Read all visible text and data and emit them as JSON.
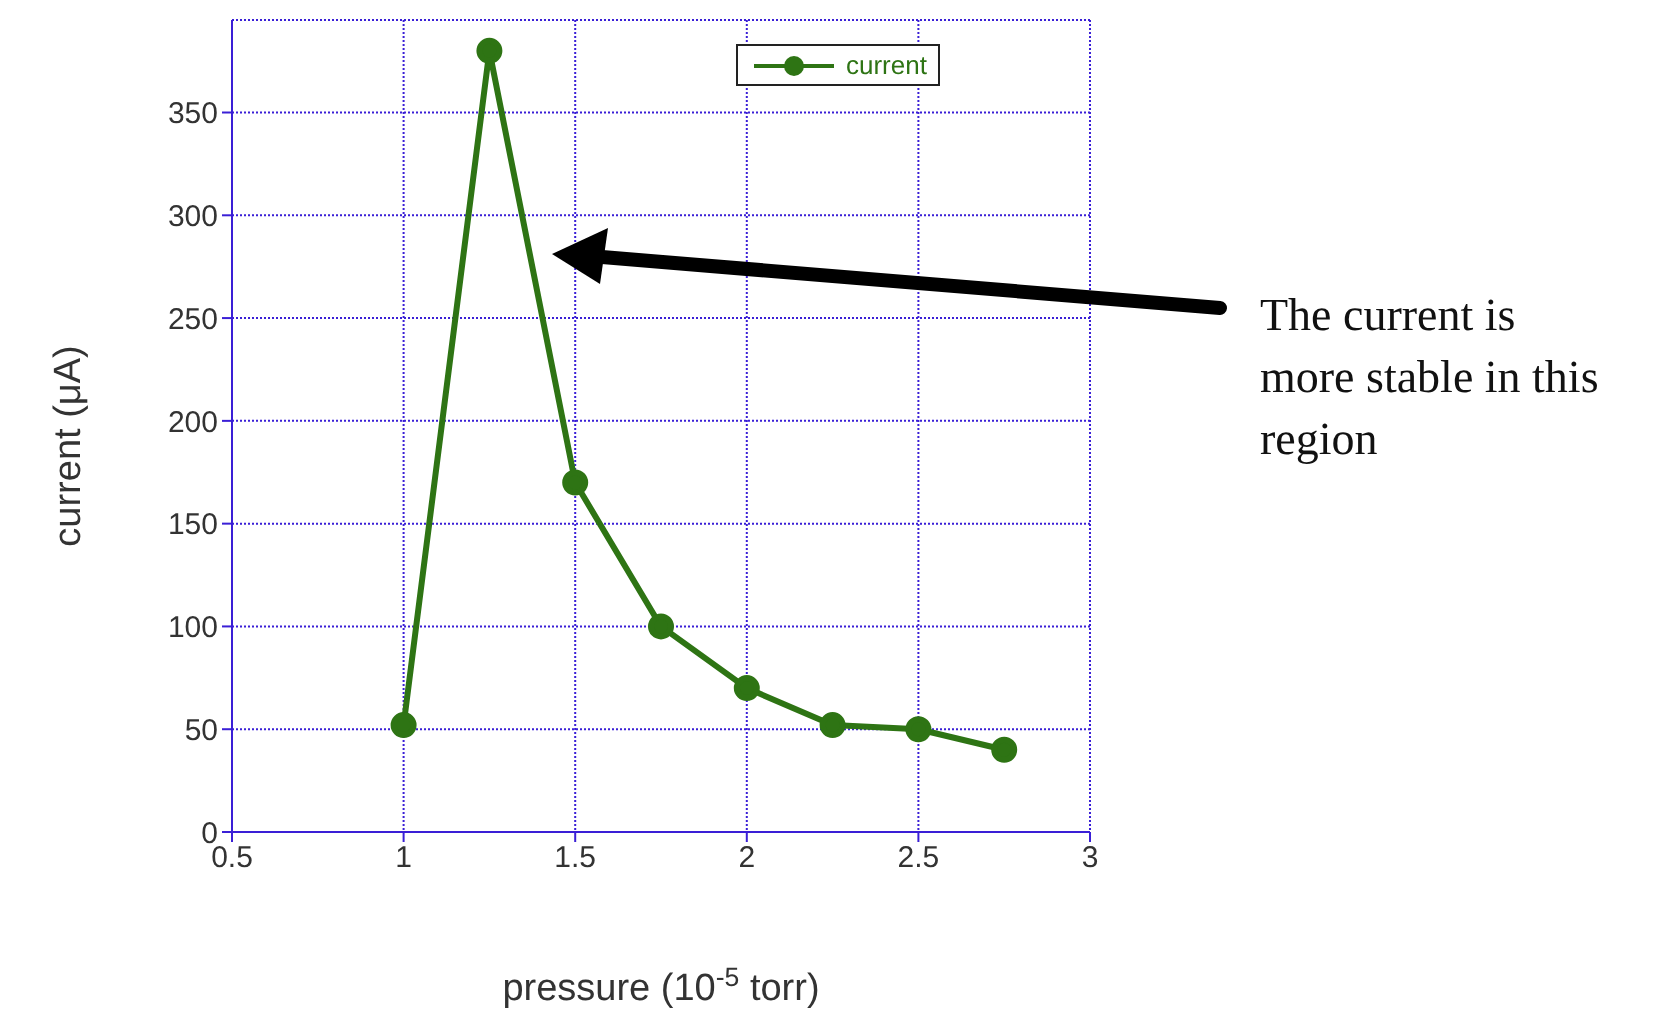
{
  "chart_data": {
    "type": "line",
    "xlabel": "pressure (10$^{-5}$ torr)",
    "ylabel": "current (μA)",
    "x": [
      1,
      1.25,
      1.5,
      1.75,
      2,
      2.25,
      2.5,
      2.75
    ],
    "series": [
      {
        "name": "current",
        "color": "#2e7414",
        "values": [
          52,
          380,
          170,
          100,
          70,
          52,
          50,
          40
        ]
      }
    ],
    "xlim": [
      0.5,
      3
    ],
    "xticks": [
      0.5,
      1,
      1.5,
      2,
      2.5,
      3
    ],
    "ylim": [
      0,
      395
    ],
    "yticks": [
      0,
      50,
      100,
      150,
      200,
      250,
      300,
      350
    ],
    "grid": true,
    "legend": "top right",
    "marker": "circle",
    "line_style": "solid",
    "annotations": [
      "The current is more stable in this region"
    ]
  }
}
